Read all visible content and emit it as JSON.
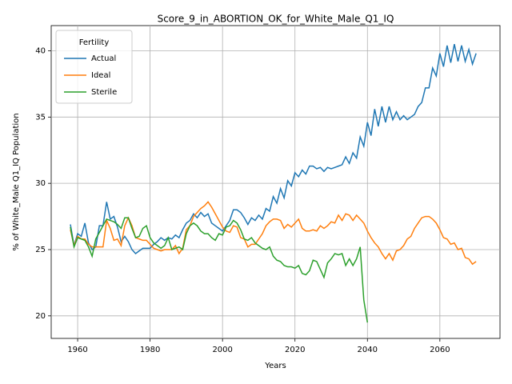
{
  "chart_data": {
    "type": "line",
    "title": "Score_9_in_ABORTION_OK_for_White_Male_Q1_IQ",
    "x_label": "Years",
    "y_label": "% of White_Male Q1_IQ Population",
    "legend_title": "Fertility",
    "legend_position": "upper left",
    "grid": true,
    "xlim": [
      1952.7,
      2076.6
    ],
    "ylim": [
      18.3,
      41.9
    ],
    "xticks": [
      1960,
      1980,
      2000,
      2020,
      2040,
      2060
    ],
    "yticks": [
      20,
      25,
      30,
      35,
      40
    ],
    "x": [
      1958,
      1959,
      1960,
      1961,
      1962,
      1963,
      1964,
      1965,
      1966,
      1967,
      1968,
      1969,
      1970,
      1971,
      1972,
      1973,
      1974,
      1975,
      1976,
      1977,
      1978,
      1979,
      1980,
      1981,
      1982,
      1983,
      1984,
      1985,
      1986,
      1987,
      1988,
      1989,
      1990,
      1991,
      1992,
      1993,
      1994,
      1995,
      1996,
      1997,
      1998,
      1999,
      2000,
      2001,
      2002,
      2003,
      2004,
      2005,
      2006,
      2007,
      2008,
      2009,
      2010,
      2011,
      2012,
      2013,
      2014,
      2015,
      2016,
      2017,
      2018,
      2019,
      2020,
      2021,
      2022,
      2023,
      2024,
      2025,
      2026,
      2027,
      2028,
      2029,
      2030,
      2031,
      2032,
      2033,
      2034,
      2035,
      2036,
      2037,
      2038,
      2039,
      2040,
      2041,
      2042,
      2043,
      2044,
      2045,
      2046,
      2047,
      2048,
      2049,
      2050,
      2051,
      2052,
      2053,
      2054,
      2055,
      2056,
      2057,
      2058,
      2059,
      2060,
      2061,
      2062,
      2063,
      2064,
      2065,
      2066,
      2067,
      2068,
      2069,
      2070
    ],
    "series": [
      {
        "name": "Actual",
        "color": "#1f77b4",
        "values": [
          26.9,
          25.3,
          26.2,
          26.0,
          27.0,
          25.5,
          25.0,
          25.2,
          26.8,
          26.8,
          28.6,
          27.3,
          27.5,
          26.7,
          25.6,
          26.0,
          25.6,
          25.0,
          24.7,
          24.9,
          25.1,
          25.1,
          25.1,
          25.4,
          25.6,
          25.9,
          25.7,
          25.9,
          25.8,
          26.1,
          25.9,
          26.5,
          27.0,
          27.2,
          27.7,
          27.4,
          27.8,
          27.5,
          27.7,
          27.0,
          26.8,
          26.6,
          26.4,
          26.8,
          27.2,
          28.0,
          28.0,
          27.8,
          27.4,
          26.9,
          27.4,
          27.2,
          27.6,
          27.3,
          28.1,
          27.9,
          29.0,
          28.5,
          29.6,
          28.9,
          30.2,
          29.8,
          30.8,
          30.5,
          31.0,
          30.7,
          31.3,
          31.3,
          31.1,
          31.2,
          30.9,
          31.2,
          31.1,
          31.2,
          31.3,
          31.4,
          32.0,
          31.5,
          32.3,
          31.9,
          33.5,
          32.8,
          34.6,
          33.6,
          35.6,
          34.3,
          35.8,
          34.6,
          35.8,
          34.8,
          35.4,
          34.8,
          35.1,
          34.8,
          35.0,
          35.2,
          35.8,
          36.1,
          37.2,
          37.2,
          38.7,
          38.1,
          39.8,
          38.8,
          40.4,
          39.1,
          40.5,
          39.2,
          40.4,
          39.2,
          40.1,
          39.0,
          39.8
        ]
      },
      {
        "name": "Ideal",
        "color": "#ff7f0e",
        "values": [
          26.5,
          25.3,
          26.0,
          25.8,
          25.8,
          25.4,
          25.2,
          25.2,
          25.2,
          25.2,
          27.2,
          26.6,
          25.7,
          25.8,
          25.3,
          26.8,
          27.4,
          26.8,
          25.9,
          25.8,
          25.7,
          25.7,
          25.4,
          25.1,
          25.0,
          24.9,
          25.0,
          25.0,
          25.0,
          25.3,
          24.7,
          25.1,
          26.5,
          26.8,
          27.5,
          27.8,
          28.1,
          28.3,
          28.6,
          28.2,
          27.7,
          27.2,
          26.7,
          26.4,
          26.3,
          26.8,
          26.7,
          25.9,
          25.8,
          25.2,
          25.4,
          25.4,
          25.8,
          26.2,
          26.8,
          27.1,
          27.3,
          27.3,
          27.2,
          26.6,
          26.9,
          26.7,
          27.0,
          27.3,
          26.6,
          26.4,
          26.4,
          26.5,
          26.4,
          26.8,
          26.6,
          26.8,
          27.1,
          27.0,
          27.6,
          27.2,
          27.7,
          27.6,
          27.2,
          27.6,
          27.3,
          27.0,
          26.4,
          25.9,
          25.5,
          25.2,
          24.7,
          24.3,
          24.7,
          24.2,
          24.9,
          25.0,
          25.3,
          25.8,
          26.0,
          26.6,
          27.0,
          27.4,
          27.5,
          27.5,
          27.3,
          27.0,
          26.5,
          25.9,
          25.8,
          25.4,
          25.5,
          25.0,
          25.1,
          24.4,
          24.3,
          23.9,
          24.1
        ]
      },
      {
        "name": "Sterile",
        "color": "#2ca02c",
        "values": [
          26.7,
          25.2,
          25.9,
          25.8,
          25.7,
          25.2,
          24.5,
          25.8,
          26.3,
          26.8,
          27.3,
          27.2,
          27.1,
          26.9,
          26.6,
          27.4,
          27.4,
          26.6,
          25.9,
          26.0,
          26.6,
          26.8,
          25.9,
          25.5,
          25.3,
          25.1,
          25.3,
          25.9,
          25.0,
          25.1,
          25.2,
          25.0,
          26.2,
          26.8,
          27.0,
          26.8,
          26.4,
          26.2,
          26.2,
          25.9,
          25.7,
          26.2,
          26.1,
          26.7,
          26.8,
          27.2,
          27.0,
          26.5,
          25.8,
          25.7,
          25.9,
          25.5,
          25.3,
          25.1,
          25.0,
          25.2,
          24.5,
          24.2,
          24.1,
          23.8,
          23.7,
          23.7,
          23.6,
          23.8,
          23.2,
          23.1,
          23.4,
          24.2,
          24.1,
          23.5,
          22.9,
          24.0,
          24.3,
          24.7,
          24.6,
          24.7,
          23.8,
          24.3,
          23.8,
          24.3,
          25.2,
          21.2,
          19.5,
          null,
          null,
          null,
          null,
          null,
          null,
          null,
          null,
          null,
          null,
          null,
          null,
          null,
          null,
          null,
          null,
          null,
          null,
          null,
          null,
          null,
          null,
          null,
          null,
          null,
          null,
          null,
          null,
          null,
          null
        ]
      }
    ]
  }
}
